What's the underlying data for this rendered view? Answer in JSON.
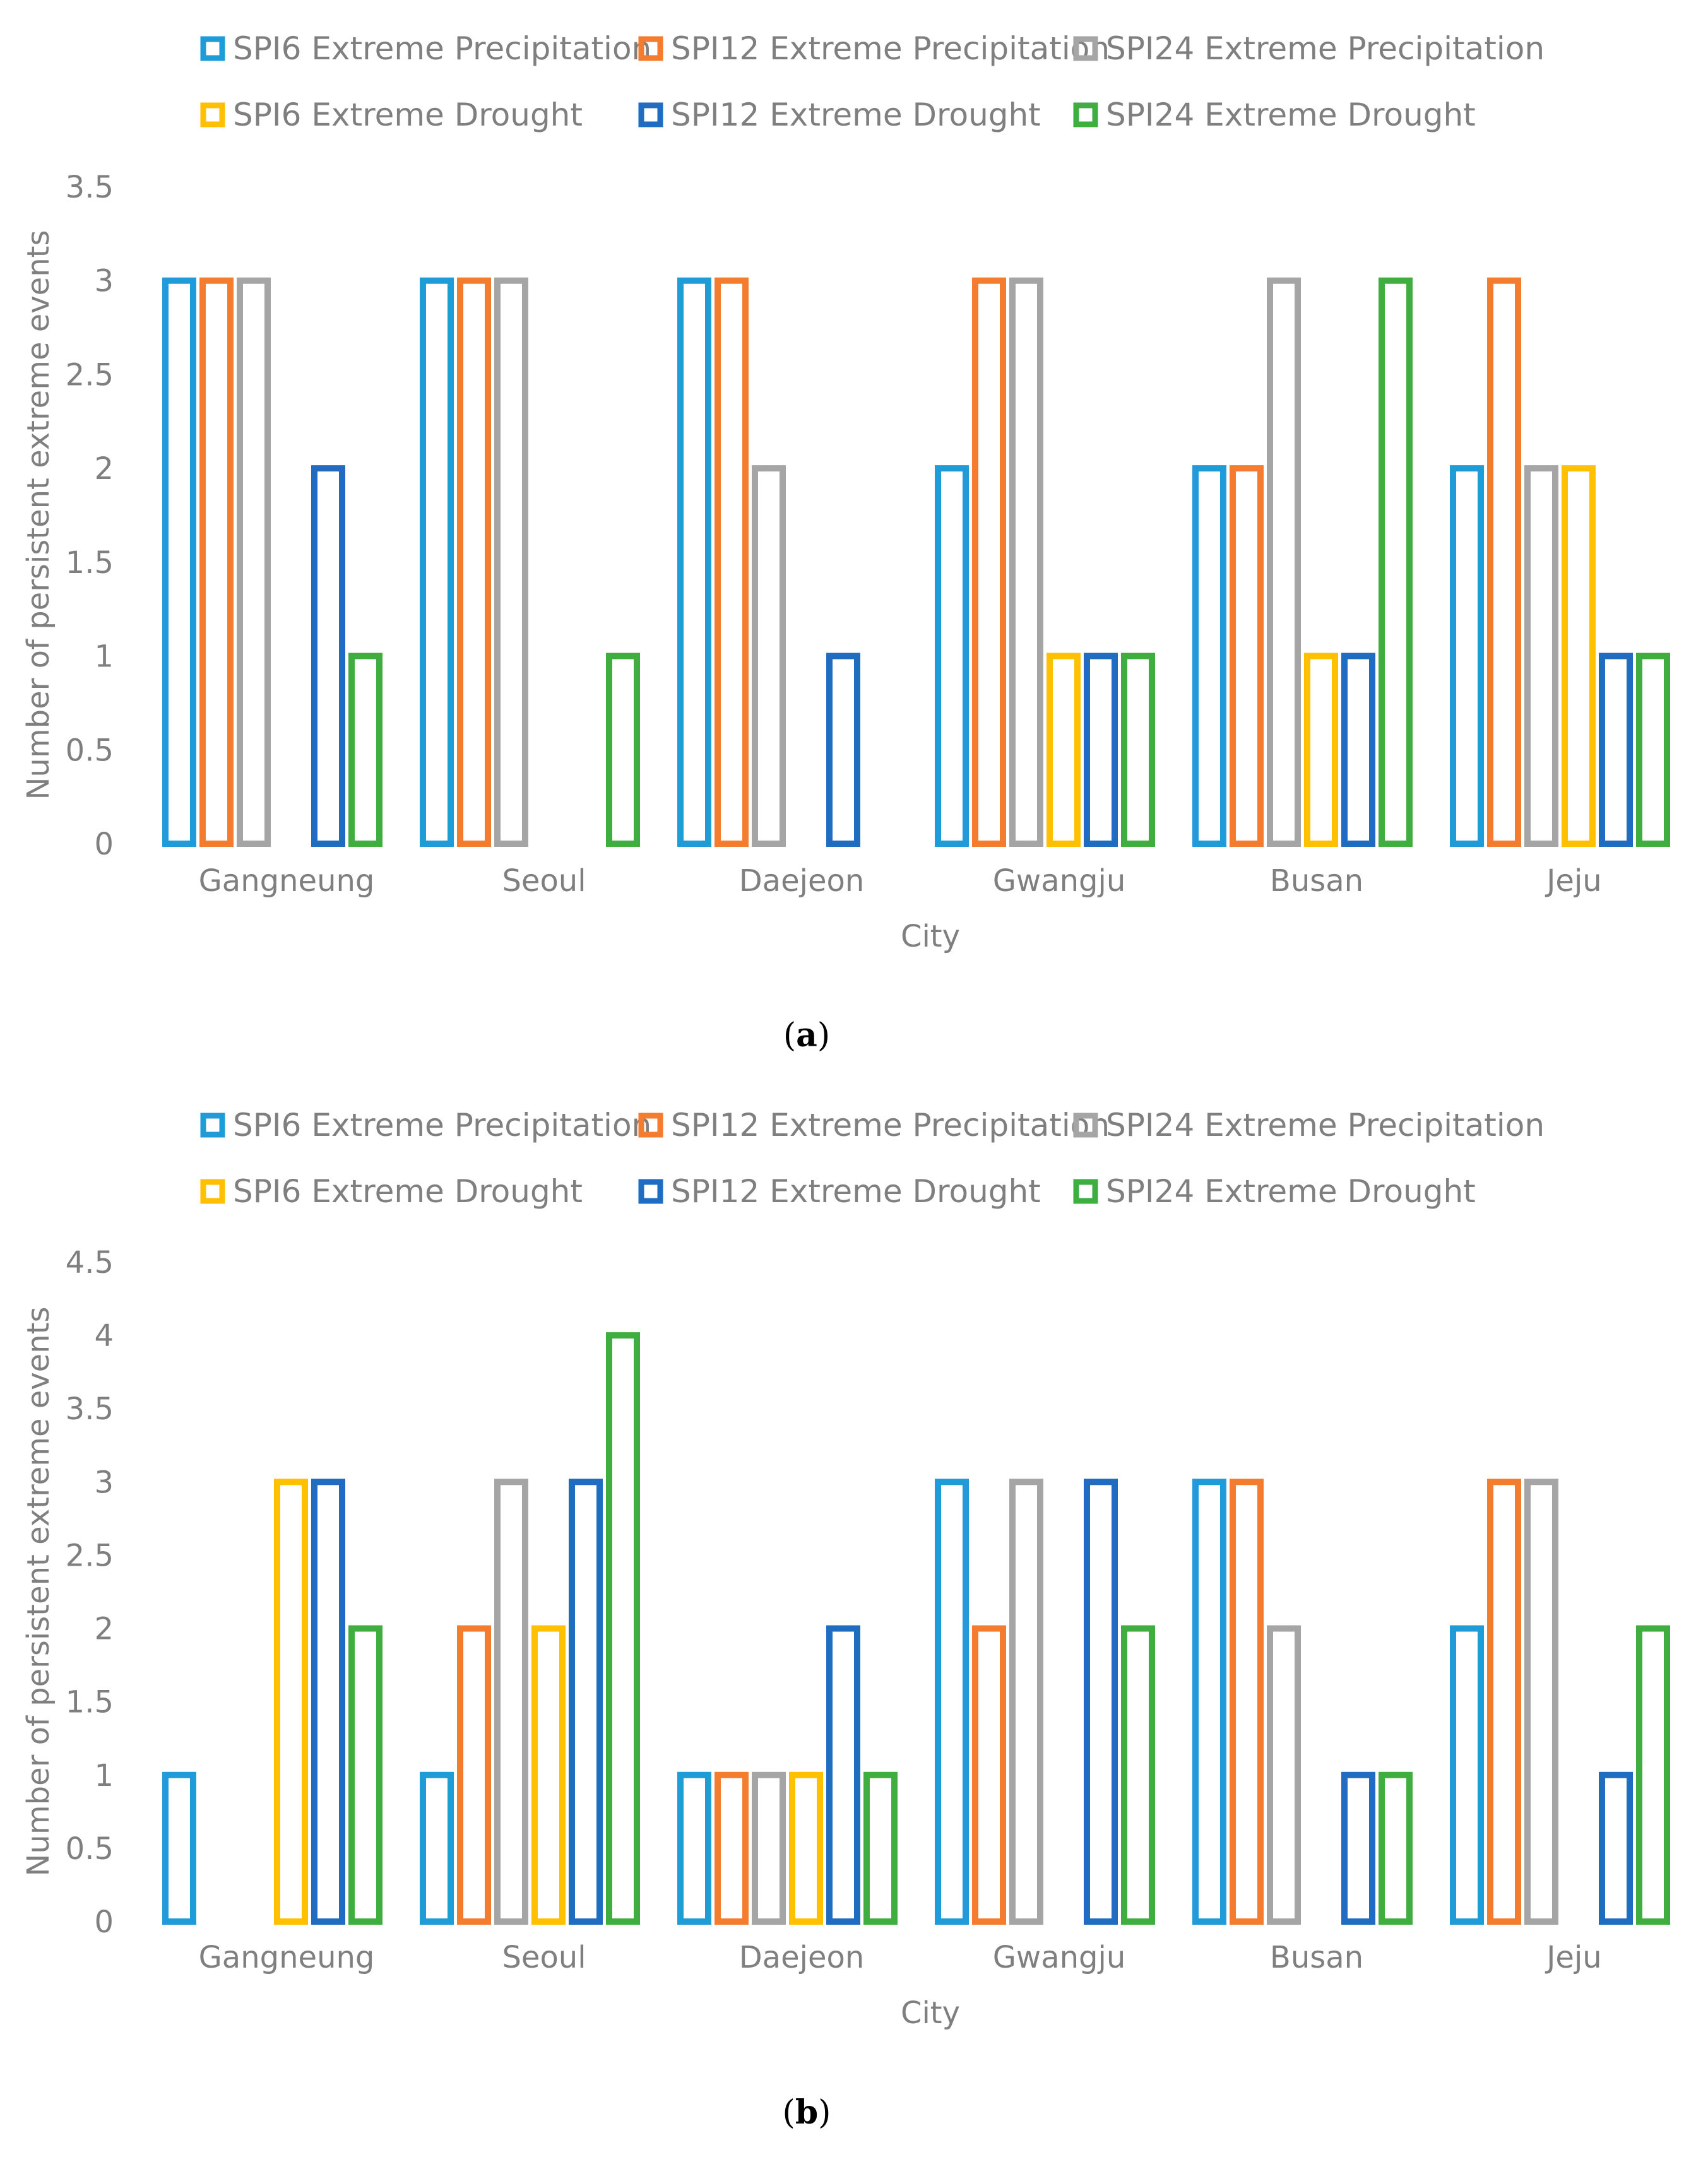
{
  "chart_data": [
    {
      "type": "bar",
      "panel_label": "a",
      "categories": [
        "Gangneung",
        "Seoul",
        "Daejeon",
        "Gwangju",
        "Busan",
        "Jeju"
      ],
      "series": [
        {
          "name": "SPI6 Extreme Precipitation",
          "color": "#1f9bd7",
          "values": [
            3,
            3,
            3,
            2,
            2,
            2
          ]
        },
        {
          "name": "SPI12 Extreme Precipitation",
          "color": "#f47c2e",
          "values": [
            3,
            3,
            3,
            3,
            2,
            3
          ]
        },
        {
          "name": "SPI24 Extreme Precipitation",
          "color": "#a5a5a5",
          "values": [
            3,
            3,
            2,
            3,
            3,
            2
          ]
        },
        {
          "name": "SPI6 Extreme Drought",
          "color": "#ffc000",
          "values": [
            0,
            0,
            0,
            1,
            1,
            2
          ]
        },
        {
          "name": "SPI12 Extreme Drought",
          "color": "#1f6cc1",
          "values": [
            2,
            0,
            1,
            1,
            1,
            1
          ]
        },
        {
          "name": "SPI24 Extreme Drought",
          "color": "#3fad3f",
          "values": [
            1,
            1,
            0,
            1,
            3,
            1
          ]
        }
      ],
      "xlabel": "City",
      "ylabel": "Number of persistent extreme events",
      "ylim": [
        0,
        3.5
      ],
      "yticks": [
        "0",
        "0.5",
        "1",
        "1.5",
        "2",
        "2.5",
        "3",
        "3.5"
      ],
      "grid": false,
      "legend": "top"
    },
    {
      "type": "bar",
      "panel_label": "b",
      "categories": [
        "Gangneung",
        "Seoul",
        "Daejeon",
        "Gwangju",
        "Busan",
        "Jeju"
      ],
      "series": [
        {
          "name": "SPI6 Extreme Precipitation",
          "color": "#1f9bd7",
          "values": [
            1,
            1,
            1,
            3,
            3,
            2
          ]
        },
        {
          "name": "SPI12 Extreme Precipitation",
          "color": "#f47c2e",
          "values": [
            0,
            2,
            1,
            2,
            3,
            3
          ]
        },
        {
          "name": "SPI24 Extreme Precipitation",
          "color": "#a5a5a5",
          "values": [
            0,
            3,
            1,
            3,
            2,
            3
          ]
        },
        {
          "name": "SPI6 Extreme Drought",
          "color": "#ffc000",
          "values": [
            3,
            2,
            1,
            0,
            0,
            0
          ]
        },
        {
          "name": "SPI12 Extreme Drought",
          "color": "#1f6cc1",
          "values": [
            3,
            3,
            2,
            3,
            1,
            1
          ]
        },
        {
          "name": "SPI24 Extreme Drought",
          "color": "#3fad3f",
          "values": [
            2,
            4,
            1,
            2,
            1,
            2
          ]
        }
      ],
      "xlabel": "City",
      "ylabel": "Number of persistent extreme events",
      "ylim": [
        0,
        4.5
      ],
      "yticks": [
        "0",
        "0.5",
        "1",
        "1.5",
        "2",
        "2.5",
        "3",
        "3.5",
        "4",
        "4.5"
      ],
      "grid": false,
      "legend": "top"
    }
  ]
}
